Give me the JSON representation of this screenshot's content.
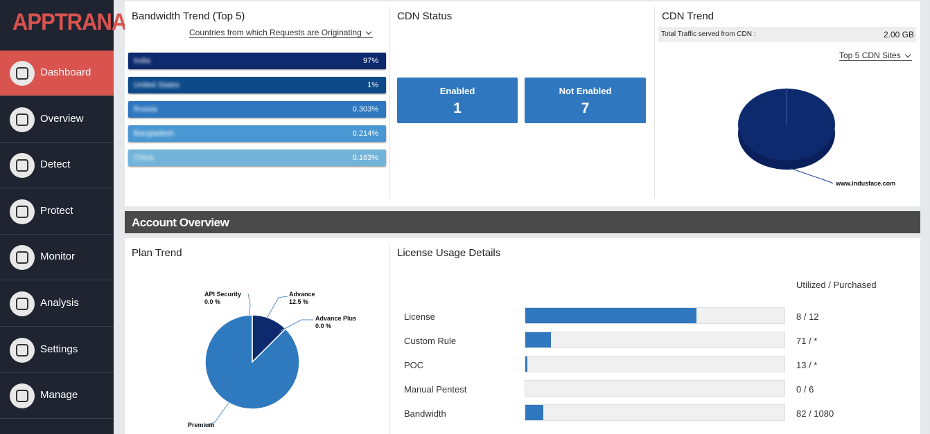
{
  "sidebar": {
    "logo": "APPTRANA",
    "nav": [
      "Dashboard",
      "Overview",
      "Detect",
      "Protect",
      "Monitor",
      "Analysis",
      "Settings",
      "Manage"
    ]
  },
  "bandwidth": {
    "title": "Bandwidth Trend (Top 5)",
    "filter": "Countries from which Requests are Originating",
    "rows": [
      {
        "country": "India",
        "share": "97%"
      },
      {
        "country": "United States",
        "share": "1%"
      },
      {
        "country": "Russia",
        "share": "0.303%"
      },
      {
        "country": "Bangladesh",
        "share": "0.214%"
      },
      {
        "country": "China",
        "share": "0.163%"
      }
    ]
  },
  "cdn_status": {
    "title": "CDN Status",
    "tiles": [
      {
        "label": "Enabled",
        "count": "1"
      },
      {
        "label": "Not Enabled",
        "count": "7"
      }
    ]
  },
  "cdn_trend": {
    "title": "CDN Trend",
    "traffic_label": "Total Traffic served from CDN :",
    "traffic_value": "2.00 GB",
    "filter": "Top 5 CDN Sites",
    "site": "www.indusface.com"
  },
  "account_overview": {
    "title": "Account Overview"
  },
  "plan_trend": {
    "type": "pie",
    "title": "Plan Trend",
    "categories": [
      "API Security",
      "Advance",
      "Advance Plus",
      "Premium"
    ],
    "values": [
      0,
      12.5,
      0,
      87.5
    ],
    "value_labels": [
      "0.0 %",
      "12.5 %",
      "0.0 %",
      null
    ],
    "colors": [
      "#2f7abf",
      "#0d2a6e",
      "#2f7abf",
      "#2f7abf"
    ]
  },
  "license": {
    "title": "License Usage Details",
    "column": "Utilized / Purchased",
    "rows": [
      {
        "name": "License",
        "usage": "8 / 12",
        "fill": 66
      },
      {
        "name": "Custom Rule",
        "usage": "71 / *",
        "fill": 10
      },
      {
        "name": "POC",
        "usage": "13 / *",
        "fill": 0.8
      },
      {
        "name": "Manual Pentest",
        "usage": "0 / 6",
        "fill": 0
      },
      {
        "name": "Bandwidth",
        "usage": "82 / 1080",
        "fill": 7
      }
    ]
  }
}
